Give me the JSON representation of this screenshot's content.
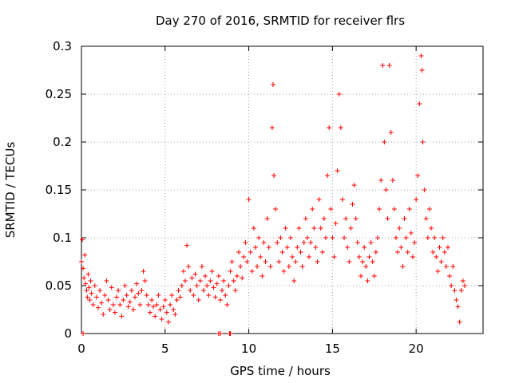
{
  "chart_data": {
    "type": "scatter",
    "title": "Day 270 of 2016, SRMTID for receiver flrs",
    "xlabel": "GPS time / hours",
    "ylabel": "SRMTID / TECUs",
    "xlim": [
      0,
      24
    ],
    "ylim": [
      0,
      0.3
    ],
    "xticks": [
      0,
      5,
      10,
      15,
      20
    ],
    "xtick_labels": [
      "0",
      "5",
      "10",
      "15",
      "20"
    ],
    "yticks": [
      0,
      0.05,
      0.1,
      0.15,
      0.2,
      0.25,
      0.3
    ],
    "ytick_labels": [
      "0",
      "0.05",
      "0.1",
      "0.15",
      "0.2",
      "0.25",
      "0.3"
    ],
    "grid": true,
    "marker": "+",
    "color": "#ff0000",
    "series": [
      {
        "name": "SRMTID",
        "points": [
          [
            0.0,
            0.075
          ],
          [
            0.05,
            0.098
          ],
          [
            0.1,
            0.068
          ],
          [
            0.15,
            0.058
          ],
          [
            0.2,
            0.082
          ],
          [
            0.25,
            0.052
          ],
          [
            0.3,
            0.045
          ],
          [
            0.35,
            0.038
          ],
          [
            0.4,
            0.062
          ],
          [
            0.45,
            0.048
          ],
          [
            0.5,
            0.035
          ],
          [
            0.55,
            0.055
          ],
          [
            0.6,
            0.042
          ],
          [
            0.7,
            0.03
          ],
          [
            0.8,
            0.05
          ],
          [
            0.9,
            0.038
          ],
          [
            1.0,
            0.027
          ],
          [
            1.1,
            0.045
          ],
          [
            1.2,
            0.032
          ],
          [
            1.3,
            0.02
          ],
          [
            1.4,
            0.04
          ],
          [
            1.5,
            0.055
          ],
          [
            1.6,
            0.035
          ],
          [
            1.7,
            0.025
          ],
          [
            1.8,
            0.048
          ],
          [
            1.9,
            0.03
          ],
          [
            2.0,
            0.022
          ],
          [
            2.1,
            0.038
          ],
          [
            2.2,
            0.045
          ],
          [
            2.3,
            0.03
          ],
          [
            2.4,
            0.018
          ],
          [
            2.5,
            0.035
          ],
          [
            2.6,
            0.05
          ],
          [
            2.7,
            0.04
          ],
          [
            2.8,
            0.028
          ],
          [
            2.9,
            0.033
          ],
          [
            3.0,
            0.045
          ],
          [
            3.1,
            0.025
          ],
          [
            3.2,
            0.038
          ],
          [
            3.3,
            0.052
          ],
          [
            3.4,
            0.042
          ],
          [
            3.5,
            0.03
          ],
          [
            3.6,
            0.045
          ],
          [
            3.7,
            0.065
          ],
          [
            3.8,
            0.055
          ],
          [
            3.9,
            0.04
          ],
          [
            4.0,
            0.03
          ],
          [
            4.1,
            0.022
          ],
          [
            4.2,
            0.035
          ],
          [
            4.3,
            0.028
          ],
          [
            4.4,
            0.018
          ],
          [
            4.5,
            0.03
          ],
          [
            4.6,
            0.04
          ],
          [
            4.7,
            0.025
          ],
          [
            4.8,
            0.015
          ],
          [
            4.9,
            0.028
          ],
          [
            5.0,
            0.035
          ],
          [
            5.1,
            0.022
          ],
          [
            5.2,
            0.012
          ],
          [
            5.3,
            0.03
          ],
          [
            5.4,
            0.04
          ],
          [
            5.5,
            0.025
          ],
          [
            5.6,
            0.02
          ],
          [
            5.7,
            0.035
          ],
          [
            5.8,
            0.045
          ],
          [
            5.9,
            0.038
          ],
          [
            6.0,
            0.05
          ],
          [
            6.1,
            0.065
          ],
          [
            6.2,
            0.055
          ],
          [
            6.3,
            0.092
          ],
          [
            6.4,
            0.07
          ],
          [
            6.5,
            0.045
          ],
          [
            6.6,
            0.058
          ],
          [
            6.7,
            0.04
          ],
          [
            6.8,
            0.062
          ],
          [
            6.9,
            0.05
          ],
          [
            7.0,
            0.035
          ],
          [
            7.1,
            0.055
          ],
          [
            7.2,
            0.07
          ],
          [
            7.3,
            0.045
          ],
          [
            7.4,
            0.06
          ],
          [
            7.5,
            0.05
          ],
          [
            7.6,
            0.04
          ],
          [
            7.7,
            0.055
          ],
          [
            7.8,
            0.065
          ],
          [
            7.9,
            0.048
          ],
          [
            8.0,
            0.038
          ],
          [
            8.1,
            0.052
          ],
          [
            8.2,
            0.06
          ],
          [
            8.3,
            0.035
          ],
          [
            8.4,
            0.045
          ],
          [
            8.5,
            0.055
          ],
          [
            8.6,
            0.04
          ],
          [
            8.7,
            0.03
          ],
          [
            8.8,
            0.05
          ],
          [
            8.9,
            0.065
          ],
          [
            9.0,
            0.075
          ],
          [
            9.1,
            0.055
          ],
          [
            9.2,
            0.045
          ],
          [
            9.3,
            0.06
          ],
          [
            9.4,
            0.085
          ],
          [
            9.5,
            0.07
          ],
          [
            9.6,
            0.058
          ],
          [
            9.7,
            0.08
          ],
          [
            9.8,
            0.095
          ],
          [
            9.9,
            0.075
          ],
          [
            10.0,
            0.14
          ],
          [
            10.1,
            0.085
          ],
          [
            10.2,
            0.065
          ],
          [
            10.3,
            0.11
          ],
          [
            10.4,
            0.09
          ],
          [
            10.5,
            0.07
          ],
          [
            10.6,
            0.1
          ],
          [
            10.7,
            0.08
          ],
          [
            10.8,
            0.06
          ],
          [
            10.9,
            0.095
          ],
          [
            11.0,
            0.075
          ],
          [
            11.1,
            0.12
          ],
          [
            11.2,
            0.09
          ],
          [
            11.3,
            0.07
          ],
          [
            11.4,
            0.215
          ],
          [
            11.45,
            0.26
          ],
          [
            11.5,
            0.165
          ],
          [
            11.6,
            0.13
          ],
          [
            11.7,
            0.095
          ],
          [
            11.8,
            0.075
          ],
          [
            11.9,
            0.1
          ],
          [
            12.0,
            0.085
          ],
          [
            12.1,
            0.065
          ],
          [
            12.2,
            0.11
          ],
          [
            12.3,
            0.09
          ],
          [
            12.4,
            0.07
          ],
          [
            12.5,
            0.1
          ],
          [
            12.6,
            0.08
          ],
          [
            12.7,
            0.055
          ],
          [
            12.8,
            0.075
          ],
          [
            12.9,
            0.09
          ],
          [
            13.0,
            0.11
          ],
          [
            13.1,
            0.085
          ],
          [
            13.2,
            0.07
          ],
          [
            13.3,
            0.095
          ],
          [
            13.4,
            0.12
          ],
          [
            13.5,
            0.1
          ],
          [
            13.6,
            0.08
          ],
          [
            13.7,
            0.095
          ],
          [
            13.8,
            0.13
          ],
          [
            13.9,
            0.11
          ],
          [
            14.0,
            0.09
          ],
          [
            14.1,
            0.075
          ],
          [
            14.2,
            0.14
          ],
          [
            14.3,
            0.11
          ],
          [
            14.4,
            0.085
          ],
          [
            14.5,
            0.12
          ],
          [
            14.6,
            0.1
          ],
          [
            14.7,
            0.165
          ],
          [
            14.8,
            0.215
          ],
          [
            14.9,
            0.13
          ],
          [
            15.0,
            0.1
          ],
          [
            15.1,
            0.08
          ],
          [
            15.2,
            0.115
          ],
          [
            15.3,
            0.17
          ],
          [
            15.4,
            0.25
          ],
          [
            15.5,
            0.215
          ],
          [
            15.6,
            0.14
          ],
          [
            15.7,
            0.1
          ],
          [
            15.8,
            0.12
          ],
          [
            15.9,
            0.09
          ],
          [
            16.0,
            0.075
          ],
          [
            16.1,
            0.11
          ],
          [
            16.2,
            0.135
          ],
          [
            16.3,
            0.155
          ],
          [
            16.4,
            0.12
          ],
          [
            16.5,
            0.095
          ],
          [
            16.6,
            0.08
          ],
          [
            16.7,
            0.06
          ],
          [
            16.8,
            0.075
          ],
          [
            16.9,
            0.09
          ],
          [
            17.0,
            0.07
          ],
          [
            17.1,
            0.055
          ],
          [
            17.2,
            0.08
          ],
          [
            17.3,
            0.095
          ],
          [
            17.4,
            0.075
          ],
          [
            17.5,
            0.06
          ],
          [
            17.6,
            0.085
          ],
          [
            17.7,
            0.1
          ],
          [
            17.8,
            0.13
          ],
          [
            17.9,
            0.16
          ],
          [
            18.0,
            0.28
          ],
          [
            18.1,
            0.2
          ],
          [
            18.2,
            0.15
          ],
          [
            18.3,
            0.12
          ],
          [
            18.4,
            0.28
          ],
          [
            18.5,
            0.21
          ],
          [
            18.6,
            0.16
          ],
          [
            18.7,
            0.13
          ],
          [
            18.8,
            0.1
          ],
          [
            18.9,
            0.085
          ],
          [
            19.0,
            0.11
          ],
          [
            19.1,
            0.09
          ],
          [
            19.2,
            0.07
          ],
          [
            19.3,
            0.12
          ],
          [
            19.4,
            0.1
          ],
          [
            19.5,
            0.085
          ],
          [
            19.6,
            0.13
          ],
          [
            19.7,
            0.105
          ],
          [
            19.8,
            0.08
          ],
          [
            19.9,
            0.095
          ],
          [
            20.0,
            0.14
          ],
          [
            20.1,
            0.165
          ],
          [
            20.2,
            0.24
          ],
          [
            20.3,
            0.29
          ],
          [
            20.35,
            0.275
          ],
          [
            20.4,
            0.2
          ],
          [
            20.5,
            0.15
          ],
          [
            20.6,
            0.12
          ],
          [
            20.7,
            0.1
          ],
          [
            20.8,
            0.13
          ],
          [
            20.9,
            0.11
          ],
          [
            21.0,
            0.085
          ],
          [
            21.1,
            0.1
          ],
          [
            21.2,
            0.08
          ],
          [
            21.3,
            0.065
          ],
          [
            21.4,
            0.09
          ],
          [
            21.5,
            0.075
          ],
          [
            21.6,
            0.1
          ],
          [
            21.7,
            0.085
          ],
          [
            21.8,
            0.07
          ],
          [
            21.9,
            0.09
          ],
          [
            22.0,
            0.06
          ],
          [
            22.1,
            0.05
          ],
          [
            22.2,
            0.07
          ],
          [
            22.3,
            0.045
          ],
          [
            22.4,
            0.035
          ],
          [
            22.5,
            0.028
          ],
          [
            22.6,
            0.012
          ],
          [
            22.7,
            0.045
          ],
          [
            22.8,
            0.055
          ],
          [
            22.9,
            0.05
          ],
          [
            0.1,
            0.0
          ],
          [
            8.2,
            0.0
          ],
          [
            8.3,
            0.0
          ],
          [
            8.85,
            0.0
          ],
          [
            8.9,
            0.0
          ]
        ]
      }
    ]
  }
}
